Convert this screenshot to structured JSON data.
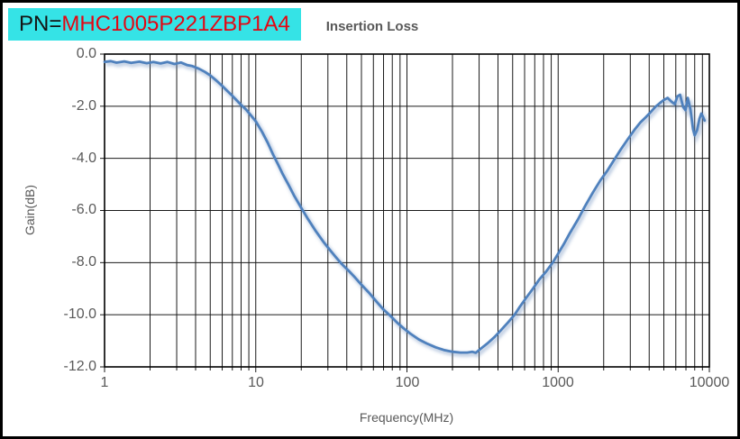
{
  "pn_label": {
    "prefix": "PN=",
    "value": "MHC1005P221ZBP1A4"
  },
  "title": "Insertion Loss",
  "colors": {
    "line": "#4f81bd",
    "line_shadow": "rgba(90,125,180,0.35)",
    "pn_background": "#35e3e6",
    "pn_value_text": "#e40613",
    "grid": "#1a1a1a",
    "text": "#595959"
  },
  "axes": {
    "x": {
      "title": "Frequency(MHz)",
      "scale": "log",
      "labels": [
        "1",
        "10",
        "100",
        "1000",
        "10000"
      ]
    },
    "y": {
      "title": "Gain(dB)",
      "labels": [
        "0.0",
        "-2.0",
        "-4.0",
        "-6.0",
        "-8.0",
        "-10.0",
        "-12.0"
      ]
    }
  },
  "chart_data": {
    "type": "line",
    "title": "Insertion Loss",
    "xlabel": "Frequency(MHz)",
    "ylabel": "Gain(dB)",
    "xscale": "log",
    "xlim": [
      1,
      10000
    ],
    "ylim": [
      -12,
      0
    ],
    "grid": true,
    "legend": false,
    "series": [
      {
        "name": "Insertion Loss",
        "color": "#4f81bd",
        "points": [
          [
            1,
            -0.3
          ],
          [
            1.1,
            -0.27
          ],
          [
            1.2,
            -0.33
          ],
          [
            1.35,
            -0.28
          ],
          [
            1.5,
            -0.34
          ],
          [
            1.7,
            -0.29
          ],
          [
            1.9,
            -0.35
          ],
          [
            2.1,
            -0.3
          ],
          [
            2.35,
            -0.36
          ],
          [
            2.6,
            -0.3
          ],
          [
            2.9,
            -0.38
          ],
          [
            3.2,
            -0.32
          ],
          [
            3.5,
            -0.42
          ],
          [
            3.8,
            -0.46
          ],
          [
            4.2,
            -0.56
          ],
          [
            4.6,
            -0.68
          ],
          [
            5,
            -0.82
          ],
          [
            5.5,
            -1.02
          ],
          [
            6,
            -1.22
          ],
          [
            6.5,
            -1.42
          ],
          [
            7,
            -1.6
          ],
          [
            7.5,
            -1.78
          ],
          [
            8,
            -1.95
          ],
          [
            8.6,
            -2.12
          ],
          [
            9.2,
            -2.32
          ],
          [
            10,
            -2.58
          ],
          [
            11,
            -2.98
          ],
          [
            12,
            -3.4
          ],
          [
            13,
            -3.85
          ],
          [
            14,
            -4.22
          ],
          [
            15,
            -4.58
          ],
          [
            16.5,
            -5.02
          ],
          [
            18,
            -5.45
          ],
          [
            20,
            -5.9
          ],
          [
            22,
            -6.3
          ],
          [
            25,
            -6.8
          ],
          [
            28,
            -7.2
          ],
          [
            31,
            -7.52
          ],
          [
            34,
            -7.8
          ],
          [
            37,
            -8.05
          ],
          [
            41,
            -8.3
          ],
          [
            45,
            -8.55
          ],
          [
            50,
            -8.85
          ],
          [
            56,
            -9.15
          ],
          [
            63,
            -9.5
          ],
          [
            70,
            -9.8
          ],
          [
            78,
            -10.05
          ],
          [
            86,
            -10.3
          ],
          [
            95,
            -10.52
          ],
          [
            105,
            -10.72
          ],
          [
            120,
            -10.95
          ],
          [
            135,
            -11.1
          ],
          [
            155,
            -11.25
          ],
          [
            175,
            -11.35
          ],
          [
            200,
            -11.42
          ],
          [
            225,
            -11.45
          ],
          [
            250,
            -11.45
          ],
          [
            270,
            -11.42
          ],
          [
            285,
            -11.46
          ],
          [
            305,
            -11.32
          ],
          [
            340,
            -11.1
          ],
          [
            380,
            -10.85
          ],
          [
            420,
            -10.58
          ],
          [
            465,
            -10.3
          ],
          [
            515,
            -10.0
          ],
          [
            560,
            -9.68
          ],
          [
            620,
            -9.32
          ],
          [
            680,
            -9.0
          ],
          [
            750,
            -8.65
          ],
          [
            830,
            -8.35
          ],
          [
            920,
            -8.0
          ],
          [
            1000,
            -7.65
          ],
          [
            1100,
            -7.25
          ],
          [
            1200,
            -6.85
          ],
          [
            1350,
            -6.35
          ],
          [
            1500,
            -5.85
          ],
          [
            1700,
            -5.3
          ],
          [
            1900,
            -4.85
          ],
          [
            2100,
            -4.5
          ],
          [
            2350,
            -4.05
          ],
          [
            2600,
            -3.65
          ],
          [
            2900,
            -3.25
          ],
          [
            3200,
            -2.9
          ],
          [
            3500,
            -2.62
          ],
          [
            3800,
            -2.42
          ],
          [
            4100,
            -2.22
          ],
          [
            4400,
            -2.02
          ],
          [
            4700,
            -1.88
          ],
          [
            5000,
            -1.76
          ],
          [
            5300,
            -1.68
          ],
          [
            5600,
            -1.82
          ],
          [
            5900,
            -1.92
          ],
          [
            6150,
            -1.62
          ],
          [
            6400,
            -1.56
          ],
          [
            6700,
            -2.02
          ],
          [
            6950,
            -2.15
          ],
          [
            7200,
            -1.68
          ],
          [
            7500,
            -2.12
          ],
          [
            7800,
            -2.88
          ],
          [
            8000,
            -3.12
          ],
          [
            8300,
            -2.92
          ],
          [
            8600,
            -2.48
          ],
          [
            8850,
            -2.28
          ],
          [
            9100,
            -2.42
          ],
          [
            9300,
            -2.55
          ]
        ]
      }
    ]
  }
}
